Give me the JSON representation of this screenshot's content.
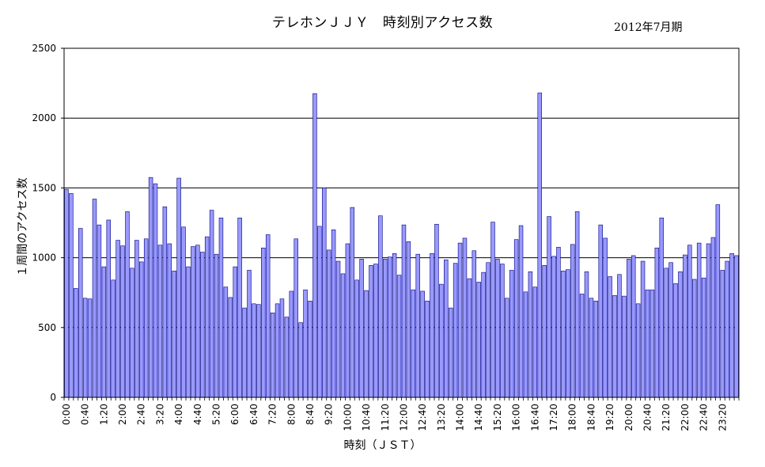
{
  "chart_data": {
    "type": "bar",
    "title": "テレホンＪＪＹ　時刻別アクセス数",
    "subtitle": "2012年7月期",
    "xlabel": "時刻（ＪＳＴ）",
    "ylabel": "１周間のアクセス数",
    "ylim": [
      0,
      2500
    ],
    "yticks": [
      0,
      500,
      1000,
      1500,
      2000,
      2500
    ],
    "grid": true,
    "bar_color": "#9999ff",
    "bar_edge_color": "#000080",
    "x_tick_labels": [
      "0:00",
      "0:40",
      "1:20",
      "2:00",
      "2:40",
      "3:20",
      "4:00",
      "4:40",
      "5:20",
      "6:00",
      "6:40",
      "7:20",
      "8:00",
      "8:40",
      "9:20",
      "10:00",
      "10:40",
      "11:20",
      "12:00",
      "12:40",
      "13:20",
      "14:00",
      "14:40",
      "15:20",
      "16:00",
      "16:40",
      "17:20",
      "18:00",
      "18:40",
      "19:20",
      "20:00",
      "20:40",
      "21:20",
      "22:00",
      "22:40",
      "23:20"
    ],
    "x_tick_every": 4,
    "interval_minutes": 10,
    "values": [
      1490,
      1460,
      780,
      1210,
      710,
      705,
      1420,
      1235,
      935,
      1270,
      840,
      1125,
      1085,
      1330,
      925,
      1125,
      970,
      1135,
      1575,
      1530,
      1090,
      1365,
      1100,
      905,
      1570,
      1220,
      935,
      1080,
      1090,
      1040,
      1150,
      1340,
      1025,
      1285,
      790,
      715,
      935,
      1285,
      640,
      910,
      670,
      665,
      1070,
      1165,
      605,
      670,
      705,
      575,
      760,
      1135,
      535,
      770,
      690,
      2175,
      1225,
      1500,
      1055,
      1200,
      975,
      885,
      1100,
      1360,
      840,
      990,
      765,
      945,
      955,
      1300,
      990,
      1005,
      1030,
      875,
      1235,
      1115,
      770,
      1025,
      760,
      690,
      1030,
      1240,
      810,
      985,
      640,
      960,
      1105,
      1140,
      850,
      1050,
      825,
      895,
      965,
      1255,
      990,
      955,
      710,
      910,
      1130,
      1230,
      755,
      900,
      790,
      2180,
      945,
      1295,
      1010,
      1075,
      905,
      915,
      1095,
      1330,
      740,
      900,
      710,
      690,
      1235,
      1140,
      865,
      730,
      880,
      725,
      990,
      1015,
      670,
      975,
      770,
      770,
      1070,
      1285,
      925,
      965,
      815,
      900,
      1020,
      1090,
      845,
      1105,
      855,
      1100,
      1145,
      1380,
      910,
      975,
      1030,
      1015
    ]
  }
}
